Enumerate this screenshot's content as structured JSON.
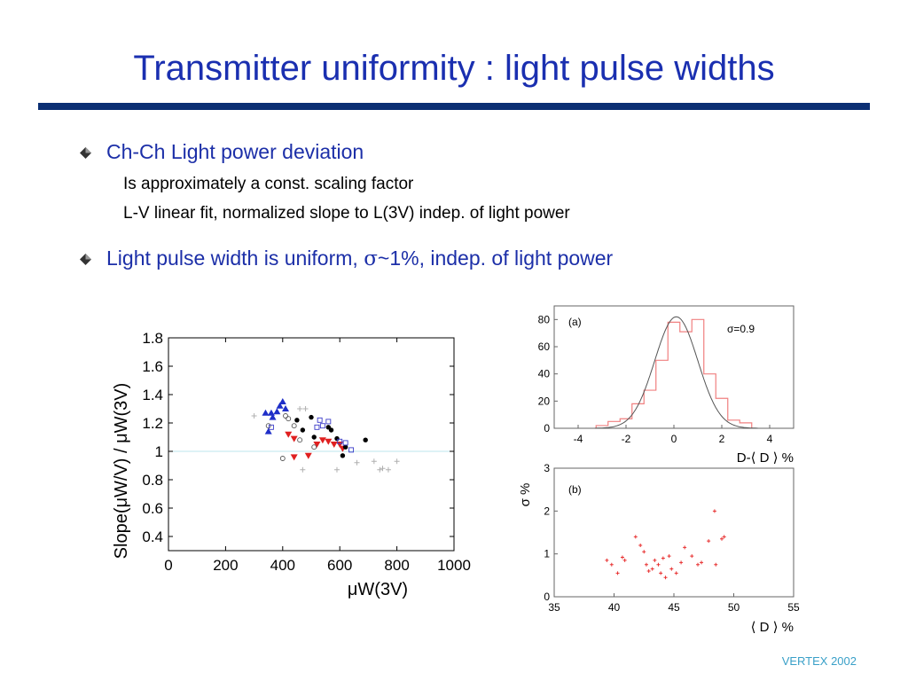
{
  "title": "Transmitter uniformity : light pulse widths",
  "bullets": {
    "b1": "Ch-Ch Light power deviation",
    "b1_sub1": "Is approximately a const. scaling factor",
    "b1_sub2": "L-V linear fit,  normalized slope to L(3V)   indep. of light power",
    "b2_pre": "Light pulse width is uniform,  ",
    "b2_sigma": "σ",
    "b2_post": "~1%,  indep. of light power"
  },
  "footer": "VERTEX 2002",
  "chart_data": [
    {
      "type": "scatter",
      "xlabel": "μW(3V)",
      "ylabel": "Slope(μW/V)  /  μW(3V)",
      "xlim": [
        0,
        1000
      ],
      "ylim": [
        0.3,
        1.8
      ],
      "xticks": [
        0,
        200,
        400,
        600,
        800,
        1000
      ],
      "yticks": [
        0.4,
        0.6,
        0.8,
        1,
        1.2,
        1.4,
        1.6,
        1.8
      ],
      "xtick_labels": [
        "0",
        "200",
        "400",
        "600",
        "800",
        "1000"
      ],
      "ytick_labels": [
        "0.4",
        "0.6",
        "0.8",
        "1",
        "1.2",
        "1.4",
        "1.6",
        "1.8"
      ],
      "reference_line": 1.0,
      "series": [
        {
          "marker": "triangle-up",
          "color": "#1f2fc8",
          "points": [
            [
              340,
              1.27
            ],
            [
              360,
              1.27
            ],
            [
              380,
              1.28
            ],
            [
              390,
              1.32
            ],
            [
              400,
              1.35
            ],
            [
              410,
              1.3
            ],
            [
              350,
              1.14
            ],
            [
              365,
              1.24
            ]
          ]
        },
        {
          "marker": "triangle-down",
          "color": "#e02020",
          "points": [
            [
              440,
              1.09
            ],
            [
              490,
              0.97
            ],
            [
              520,
              1.05
            ],
            [
              540,
              1.08
            ],
            [
              560,
              1.07
            ],
            [
              580,
              1.05
            ],
            [
              600,
              1.05
            ],
            [
              610,
              1.02
            ],
            [
              440,
              0.96
            ],
            [
              420,
              1.12
            ]
          ]
        },
        {
          "marker": "filled-circle",
          "color": "#000000",
          "points": [
            [
              450,
              1.22
            ],
            [
              470,
              1.15
            ],
            [
              510,
              1.1
            ],
            [
              560,
              1.17
            ],
            [
              570,
              1.15
            ],
            [
              590,
              1.09
            ],
            [
              620,
              1.03
            ],
            [
              690,
              1.08
            ],
            [
              500,
              1.24
            ],
            [
              610,
              0.97
            ]
          ]
        },
        {
          "marker": "open-circle",
          "color": "#555555",
          "points": [
            [
              350,
              1.18
            ],
            [
              410,
              1.25
            ],
            [
              420,
              1.23
            ],
            [
              440,
              1.18
            ],
            [
              460,
              1.08
            ],
            [
              510,
              1.03
            ],
            [
              400,
              0.95
            ]
          ]
        },
        {
          "marker": "open-square",
          "color": "#3a3ac8",
          "points": [
            [
              520,
              1.17
            ],
            [
              530,
              1.22
            ],
            [
              540,
              1.18
            ],
            [
              560,
              1.21
            ],
            [
              600,
              1.07
            ],
            [
              620,
              1.06
            ],
            [
              640,
              1.01
            ],
            [
              360,
              1.17
            ]
          ]
        },
        {
          "marker": "plus",
          "color": "#b0b0b0",
          "points": [
            [
              300,
              1.25
            ],
            [
              470,
              0.87
            ],
            [
              590,
              0.87
            ],
            [
              660,
              0.92
            ],
            [
              720,
              0.93
            ],
            [
              740,
              0.87
            ],
            [
              750,
              0.88
            ],
            [
              770,
              0.87
            ],
            [
              800,
              0.93
            ],
            [
              460,
              1.3
            ],
            [
              480,
              1.3
            ]
          ]
        }
      ]
    },
    {
      "type": "histogram",
      "panel_label": "(a)",
      "annotation": "σ=0.9",
      "xlabel": "D-⟨ D ⟩ %",
      "ylabel": "",
      "xlim": [
        -5,
        5
      ],
      "ylim": [
        0,
        90
      ],
      "xticks": [
        -4,
        -2,
        0,
        2,
        4
      ],
      "yticks": [
        0,
        20,
        40,
        60,
        80
      ],
      "bin_edges": [
        -3.25,
        -2.75,
        -2.25,
        -1.75,
        -1.25,
        -0.75,
        -0.25,
        0.25,
        0.75,
        1.25,
        1.75,
        2.25,
        2.75,
        3.25
      ],
      "counts": [
        2,
        5,
        7,
        18,
        28,
        50,
        78,
        71,
        80,
        40,
        22,
        6,
        4
      ],
      "fit_curve": {
        "type": "gaussian",
        "mean": 0.1,
        "sigma": 0.9,
        "peak": 82
      }
    },
    {
      "type": "scatter",
      "panel_label": "(b)",
      "xlabel": "⟨ D ⟩ %",
      "ylabel": "σ %",
      "xlim": [
        35,
        55
      ],
      "ylim": [
        0,
        3
      ],
      "xticks": [
        35,
        40,
        45,
        50,
        55
      ],
      "yticks": [
        0,
        1,
        2,
        3
      ],
      "color": "#e83030",
      "points": [
        [
          39.4,
          0.85
        ],
        [
          39.8,
          0.75
        ],
        [
          40.3,
          0.55
        ],
        [
          40.7,
          0.92
        ],
        [
          40.9,
          0.85
        ],
        [
          41.8,
          1.4
        ],
        [
          42.2,
          1.2
        ],
        [
          42.5,
          1.05
        ],
        [
          42.7,
          0.75
        ],
        [
          42.9,
          0.6
        ],
        [
          43.2,
          0.65
        ],
        [
          43.4,
          0.85
        ],
        [
          43.7,
          0.75
        ],
        [
          43.9,
          0.55
        ],
        [
          44.1,
          0.9
        ],
        [
          44.3,
          0.45
        ],
        [
          44.6,
          0.95
        ],
        [
          44.8,
          0.65
        ],
        [
          45.2,
          0.55
        ],
        [
          45.6,
          0.8
        ],
        [
          45.9,
          1.15
        ],
        [
          46.5,
          0.95
        ],
        [
          47.0,
          0.75
        ],
        [
          47.3,
          0.8
        ],
        [
          47.9,
          1.3
        ],
        [
          48.4,
          2.0
        ],
        [
          48.5,
          0.75
        ],
        [
          49.0,
          1.35
        ],
        [
          49.2,
          1.4
        ]
      ]
    }
  ]
}
